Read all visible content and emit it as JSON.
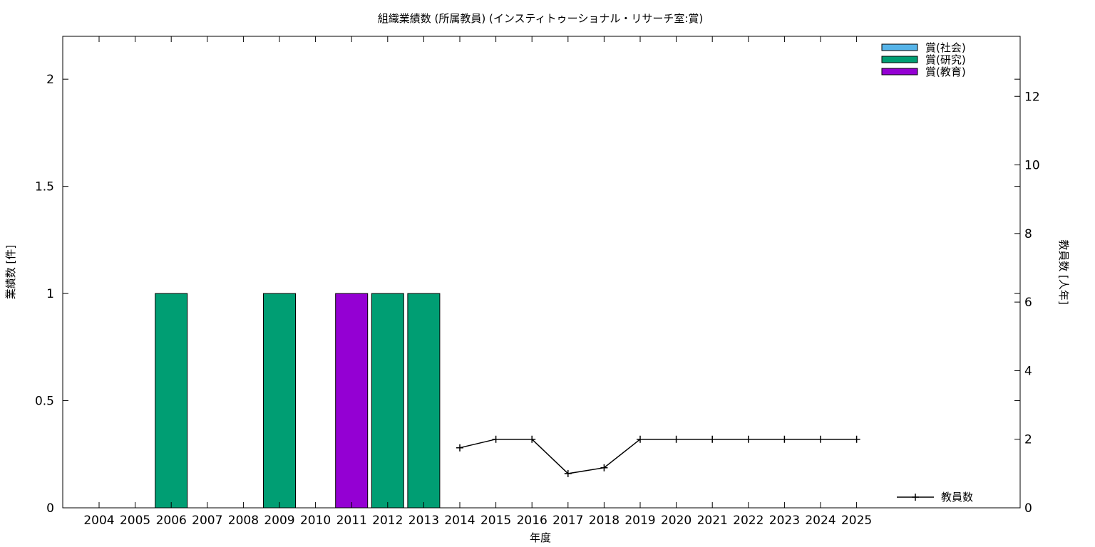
{
  "chart_data": {
    "type": "bar",
    "title": "組織業績数 (所属教員) (インスティトゥーショナル・リサーチ室:賞)",
    "xlabel": "年度",
    "ylabel": "業績数 [件]",
    "y2label": "教員数 [人年]",
    "categories": [
      "2004",
      "2005",
      "2006",
      "2007",
      "2008",
      "2009",
      "2010",
      "2011",
      "2012",
      "2013",
      "2014",
      "2015",
      "2016",
      "2017",
      "2018",
      "2019",
      "2020",
      "2021",
      "2022",
      "2023",
      "2024",
      "2025"
    ],
    "ylim": [
      0,
      2.2
    ],
    "y_ticks": [
      "0",
      "0.5",
      "1",
      "1.5",
      "2"
    ],
    "y2lim": [
      0,
      13.75
    ],
    "y2_ticks": [
      "0",
      "2",
      "4",
      "6",
      "8",
      "10",
      "12"
    ],
    "series": [
      {
        "name": "賞(社会)",
        "color": "#56b4e9",
        "values": [
          0,
          0,
          0,
          0,
          0,
          0,
          0,
          0,
          0,
          0,
          0,
          0,
          0,
          0,
          0,
          0,
          0,
          0,
          0,
          0,
          0,
          0
        ]
      },
      {
        "name": "賞(研究)",
        "color": "#009e73",
        "values": [
          0,
          0,
          1,
          0,
          0,
          1,
          0,
          0,
          1,
          1,
          0,
          0,
          0,
          0,
          0,
          0,
          0,
          0,
          0,
          0,
          0,
          0
        ]
      },
      {
        "name": "賞(教育)",
        "color": "#9400d3",
        "values": [
          0,
          0,
          0,
          0,
          0,
          0,
          0,
          1,
          0,
          0,
          0,
          0,
          0,
          0,
          0,
          0,
          0,
          0,
          0,
          0,
          0,
          0
        ]
      }
    ],
    "line_series": {
      "name": "教員数",
      "color": "#000000",
      "axis": "y2",
      "x": [
        "2014",
        "2015",
        "2016",
        "2017",
        "2018",
        "2019",
        "2020",
        "2021",
        "2022",
        "2023",
        "2024",
        "2025"
      ],
      "values": [
        1.75,
        2.0,
        2.0,
        1.0,
        1.17,
        2.0,
        2.0,
        2.0,
        2.0,
        2.0,
        2.0,
        2.0
      ]
    },
    "legend_placement": "top-right",
    "line_legend_placement": "bottom-right",
    "grid": false
  }
}
